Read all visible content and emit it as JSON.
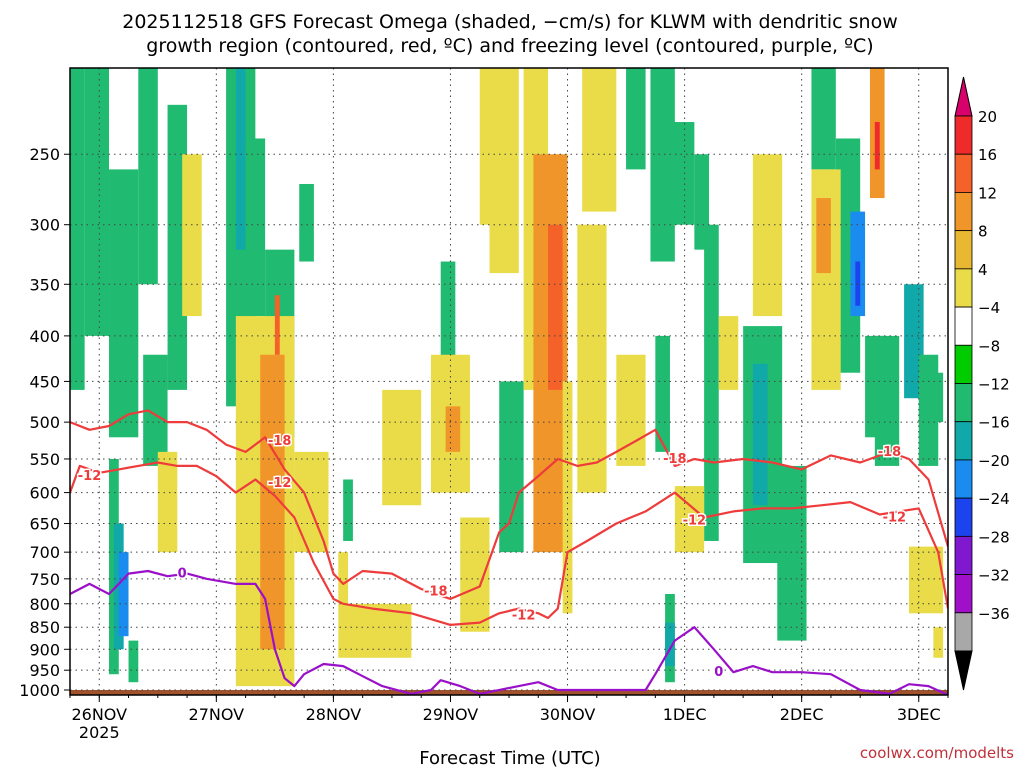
{
  "chart_data": {
    "type": "heatmap",
    "title_line1": "2025112518 GFS Forecast Omega (shaded, −cm/s) for KLWM with dendritic snow",
    "title_line2": "growth region (contoured, red, ºC) and freezing level (contoured, purple, ºC)",
    "xlabel": "Forecast Time (UTC)",
    "credit": "coolwx.com/modelts",
    "x_ticks": [
      {
        "label": "26NOV",
        "sub": "2025",
        "hour": 6
      },
      {
        "label": "27NOV",
        "sub": "",
        "hour": 30
      },
      {
        "label": "28NOV",
        "sub": "",
        "hour": 54
      },
      {
        "label": "29NOV",
        "sub": "",
        "hour": 78
      },
      {
        "label": "30NOV",
        "sub": "",
        "hour": 102
      },
      {
        "label": "1DEC",
        "sub": "",
        "hour": 126
      },
      {
        "label": "2DEC",
        "sub": "",
        "hour": 150
      },
      {
        "label": "3DEC",
        "sub": "",
        "hour": 174
      }
    ],
    "xlim": [
      0,
      180
    ],
    "y_ticks": [
      250,
      300,
      350,
      400,
      450,
      500,
      550,
      600,
      650,
      700,
      750,
      800,
      850,
      900,
      950,
      1000
    ],
    "ylim": [
      1013,
      200
    ],
    "y_scale": "log",
    "grid": true,
    "colorbar": {
      "levels": [
        "20",
        "16",
        "12",
        "8",
        "4",
        "−4",
        "−8",
        "−12",
        "−16",
        "−20",
        "−24",
        "−28",
        "−32",
        "−36"
      ],
      "colors": [
        "#d8006a",
        "#ee2a2a",
        "#f4622a",
        "#f0952a",
        "#e8b832",
        "#eadc48",
        "#ffffff",
        "#00cc00",
        "#20bb70",
        "#10a8a8",
        "#1a8cf0",
        "#1c44ee",
        "#8018d0",
        "#a010c8",
        "#a8a8a8",
        "#000000"
      ]
    },
    "omega_cells": [
      {
        "x0": 0,
        "x1": 3,
        "p0": 200,
        "p1": 460,
        "v": -9
      },
      {
        "x0": 3,
        "x1": 8,
        "p0": 200,
        "p1": 400,
        "v": -8
      },
      {
        "x0": 8,
        "x1": 14,
        "p0": 260,
        "p1": 520,
        "v": -8
      },
      {
        "x0": 14,
        "x1": 18,
        "p0": 200,
        "p1": 350,
        "v": -9
      },
      {
        "x0": 15,
        "x1": 20,
        "p0": 420,
        "p1": 560,
        "v": -8
      },
      {
        "x0": 8,
        "x1": 10,
        "p0": 550,
        "p1": 960,
        "v": -10
      },
      {
        "x0": 9,
        "x1": 11,
        "p0": 650,
        "p1": 900,
        "v": -14
      },
      {
        "x0": 10,
        "x1": 12,
        "p0": 700,
        "p1": 870,
        "v": -18
      },
      {
        "x0": 12,
        "x1": 14,
        "p0": 880,
        "p1": 980,
        "v": -9
      },
      {
        "x0": 20,
        "x1": 24,
        "p0": 220,
        "p1": 460,
        "v": -9
      },
      {
        "x0": 32,
        "x1": 38,
        "p0": 200,
        "p1": 480,
        "v": -9
      },
      {
        "x0": 34,
        "x1": 36,
        "p0": 200,
        "p1": 320,
        "v": -14
      },
      {
        "x0": 36,
        "x1": 40,
        "p0": 240,
        "p1": 380,
        "v": -9
      },
      {
        "x0": 40,
        "x1": 46,
        "p0": 320,
        "p1": 520,
        "v": -9
      },
      {
        "x0": 47,
        "x1": 50,
        "p0": 270,
        "p1": 330,
        "v": -8
      },
      {
        "x0": 56,
        "x1": 58,
        "p0": 580,
        "p1": 680,
        "v": -8
      },
      {
        "x0": 76,
        "x1": 79,
        "p0": 330,
        "p1": 450,
        "v": -8
      },
      {
        "x0": 88,
        "x1": 93,
        "p0": 450,
        "p1": 700,
        "v": -9
      },
      {
        "x0": 96,
        "x1": 98,
        "p0": 430,
        "p1": 560,
        "v": -8
      },
      {
        "x0": 114,
        "x1": 118,
        "p0": 200,
        "p1": 260,
        "v": -8
      },
      {
        "x0": 119,
        "x1": 124,
        "p0": 200,
        "p1": 330,
        "v": -9
      },
      {
        "x0": 120,
        "x1": 123,
        "p0": 400,
        "p1": 540,
        "v": -9
      },
      {
        "x0": 123,
        "x1": 128,
        "p0": 230,
        "p1": 300,
        "v": -9
      },
      {
        "x0": 128,
        "x1": 131,
        "p0": 250,
        "p1": 320,
        "v": -8
      },
      {
        "x0": 130,
        "x1": 133,
        "p0": 300,
        "p1": 680,
        "v": -8
      },
      {
        "x0": 138,
        "x1": 146,
        "p0": 390,
        "p1": 720,
        "v": -9
      },
      {
        "x0": 140,
        "x1": 143,
        "p0": 430,
        "p1": 620,
        "v": -13
      },
      {
        "x0": 145,
        "x1": 151,
        "p0": 560,
        "p1": 880,
        "v": -9
      },
      {
        "x0": 152,
        "x1": 157,
        "p0": 200,
        "p1": 260,
        "v": -9
      },
      {
        "x0": 157,
        "x1": 162,
        "p0": 240,
        "p1": 440,
        "v": -9
      },
      {
        "x0": 160,
        "x1": 163,
        "p0": 290,
        "p1": 380,
        "v": -16
      },
      {
        "x0": 161,
        "x1": 162,
        "p0": 330,
        "p1": 370,
        "v": -20
      },
      {
        "x0": 163,
        "x1": 167,
        "p0": 400,
        "p1": 520,
        "v": -9
      },
      {
        "x0": 165,
        "x1": 170,
        "p0": 400,
        "p1": 560,
        "v": -9
      },
      {
        "x0": 171,
        "x1": 175,
        "p0": 350,
        "p1": 470,
        "v": -13
      },
      {
        "x0": 174,
        "x1": 178,
        "p0": 420,
        "p1": 560,
        "v": -9
      },
      {
        "x0": 176,
        "x1": 179,
        "p0": 440,
        "p1": 500,
        "v": -8
      },
      {
        "x0": 122,
        "x1": 124,
        "p0": 780,
        "p1": 980,
        "v": -9
      },
      {
        "x0": 122,
        "x1": 124,
        "p0": 840,
        "p1": 940,
        "v": -14
      },
      {
        "x0": 18,
        "x1": 22,
        "p0": 540,
        "p1": 700,
        "v": 5
      },
      {
        "x0": 23,
        "x1": 27,
        "p0": 250,
        "p1": 380,
        "v": 5
      },
      {
        "x0": 34,
        "x1": 46,
        "p0": 380,
        "p1": 990,
        "v": 5
      },
      {
        "x0": 39,
        "x1": 44,
        "p0": 420,
        "p1": 900,
        "v": 9
      },
      {
        "x0": 42,
        "x1": 43,
        "p0": 360,
        "p1": 420,
        "v": 14
      },
      {
        "x0": 46,
        "x1": 53,
        "p0": 540,
        "p1": 700,
        "v": 5
      },
      {
        "x0": 55,
        "x1": 57,
        "p0": 700,
        "p1": 800,
        "v": 5
      },
      {
        "x0": 55,
        "x1": 70,
        "p0": 800,
        "p1": 920,
        "v": 5
      },
      {
        "x0": 64,
        "x1": 72,
        "p0": 460,
        "p1": 620,
        "v": 5
      },
      {
        "x0": 74,
        "x1": 82,
        "p0": 420,
        "p1": 600,
        "v": 5
      },
      {
        "x0": 77,
        "x1": 80,
        "p0": 480,
        "p1": 540,
        "v": 9
      },
      {
        "x0": 80,
        "x1": 86,
        "p0": 640,
        "p1": 860,
        "v": 5
      },
      {
        "x0": 84,
        "x1": 88,
        "p0": 200,
        "p1": 300,
        "v": 5
      },
      {
        "x0": 86,
        "x1": 92,
        "p0": 200,
        "p1": 340,
        "v": 5
      },
      {
        "x0": 93,
        "x1": 98,
        "p0": 200,
        "p1": 460,
        "v": 5
      },
      {
        "x0": 95,
        "x1": 102,
        "p0": 250,
        "p1": 700,
        "v": 8
      },
      {
        "x0": 98,
        "x1": 101,
        "p0": 300,
        "p1": 460,
        "v": 13
      },
      {
        "x0": 101,
        "x1": 103,
        "p0": 450,
        "p1": 820,
        "v": 5
      },
      {
        "x0": 104,
        "x1": 110,
        "p0": 300,
        "p1": 600,
        "v": 5
      },
      {
        "x0": 105,
        "x1": 112,
        "p0": 200,
        "p1": 290,
        "v": 5
      },
      {
        "x0": 112,
        "x1": 118,
        "p0": 420,
        "p1": 560,
        "v": 5
      },
      {
        "x0": 124,
        "x1": 130,
        "p0": 590,
        "p1": 700,
        "v": 5
      },
      {
        "x0": 133,
        "x1": 137,
        "p0": 380,
        "p1": 460,
        "v": 5
      },
      {
        "x0": 140,
        "x1": 146,
        "p0": 250,
        "p1": 380,
        "v": 5
      },
      {
        "x0": 152,
        "x1": 158,
        "p0": 260,
        "p1": 460,
        "v": 5
      },
      {
        "x0": 153,
        "x1": 156,
        "p0": 280,
        "p1": 340,
        "v": 10
      },
      {
        "x0": 164,
        "x1": 167,
        "p0": 200,
        "p1": 280,
        "v": 10
      },
      {
        "x0": 165,
        "x1": 166,
        "p0": 230,
        "p1": 260,
        "v": 17
      },
      {
        "x0": 172,
        "x1": 179,
        "p0": 690,
        "p1": 820,
        "v": 5
      },
      {
        "x0": 177,
        "x1": 179,
        "p0": 850,
        "p1": 920,
        "v": 5
      }
    ],
    "contours": [
      {
        "level": "-18",
        "color": "#ee3b3b",
        "x": [
          0,
          4,
          8,
          12,
          16,
          20,
          24,
          28,
          32,
          36,
          40,
          44,
          48,
          52,
          54,
          56,
          60,
          66,
          72,
          78,
          84,
          88,
          90,
          92,
          96,
          100,
          104,
          108,
          112,
          116,
          120,
          124,
          128,
          132,
          138,
          144,
          150,
          156,
          162,
          168,
          172,
          176,
          180
        ],
        "p": [
          500,
          510,
          505,
          490,
          485,
          500,
          500,
          510,
          530,
          540,
          520,
          565,
          600,
          680,
          740,
          760,
          735,
          740,
          770,
          790,
          765,
          665,
          650,
          600,
          575,
          550,
          560,
          555,
          540,
          525,
          510,
          560,
          550,
          555,
          550,
          555,
          565,
          545,
          555,
          540,
          550,
          580,
          690
        ]
      },
      {
        "level": "-12",
        "color": "#ee3b3b",
        "x": [
          0,
          2,
          6,
          10,
          14,
          18,
          22,
          26,
          30,
          34,
          38,
          42,
          46,
          50,
          54,
          56,
          62,
          70,
          78,
          84,
          88,
          92,
          96,
          98,
          100,
          102,
          106,
          112,
          118,
          124,
          130,
          136,
          142,
          148,
          154,
          160,
          166,
          170,
          174,
          178,
          180
        ],
        "p": [
          600,
          560,
          570,
          565,
          560,
          555,
          560,
          560,
          575,
          600,
          580,
          605,
          640,
          720,
          790,
          800,
          810,
          820,
          845,
          840,
          820,
          810,
          820,
          830,
          810,
          700,
          680,
          650,
          630,
          600,
          640,
          630,
          625,
          625,
          620,
          615,
          635,
          630,
          625,
          700,
          810
        ]
      },
      {
        "level": "0",
        "color": "#9a10c8",
        "x": [
          0,
          4,
          8,
          10,
          12,
          16,
          20,
          24,
          28,
          34,
          38,
          40,
          42,
          44,
          46,
          48,
          52,
          56,
          60,
          64,
          70,
          74,
          76,
          80,
          84,
          92,
          96,
          100,
          118,
          120,
          124,
          128,
          132,
          136,
          140,
          144,
          150,
          156,
          162,
          168,
          172,
          176,
          180
        ],
        "p": [
          780,
          760,
          780,
          760,
          740,
          735,
          745,
          740,
          750,
          760,
          760,
          790,
          900,
          970,
          990,
          960,
          935,
          940,
          965,
          990,
          1010,
          1000,
          975,
          990,
          1010,
          990,
          980,
          1000,
          1000,
          960,
          880,
          850,
          900,
          955,
          940,
          955,
          955,
          960,
          1000,
          1010,
          985,
          990,
          1013
        ]
      }
    ],
    "contour_labels": [
      {
        "text": "-18",
        "x": 43,
        "p": 525
      },
      {
        "text": "-12",
        "x": 4,
        "p": 575
      },
      {
        "text": "-12",
        "x": 43,
        "p": 585
      },
      {
        "text": "0",
        "x": 23,
        "p": 740
      },
      {
        "text": "-18",
        "x": 75,
        "p": 775
      },
      {
        "text": "-12",
        "x": 93,
        "p": 825
      },
      {
        "text": "-18",
        "x": 124,
        "p": 550
      },
      {
        "text": "-12",
        "x": 128,
        "p": 645
      },
      {
        "text": "-18",
        "x": 168,
        "p": 540
      },
      {
        "text": "-12",
        "x": 169,
        "p": 640
      },
      {
        "text": "0",
        "x": 133,
        "p": 955
      }
    ],
    "ground": {
      "p_top": 1000,
      "p_bottom": 1013,
      "color": "#a0522d"
    }
  }
}
